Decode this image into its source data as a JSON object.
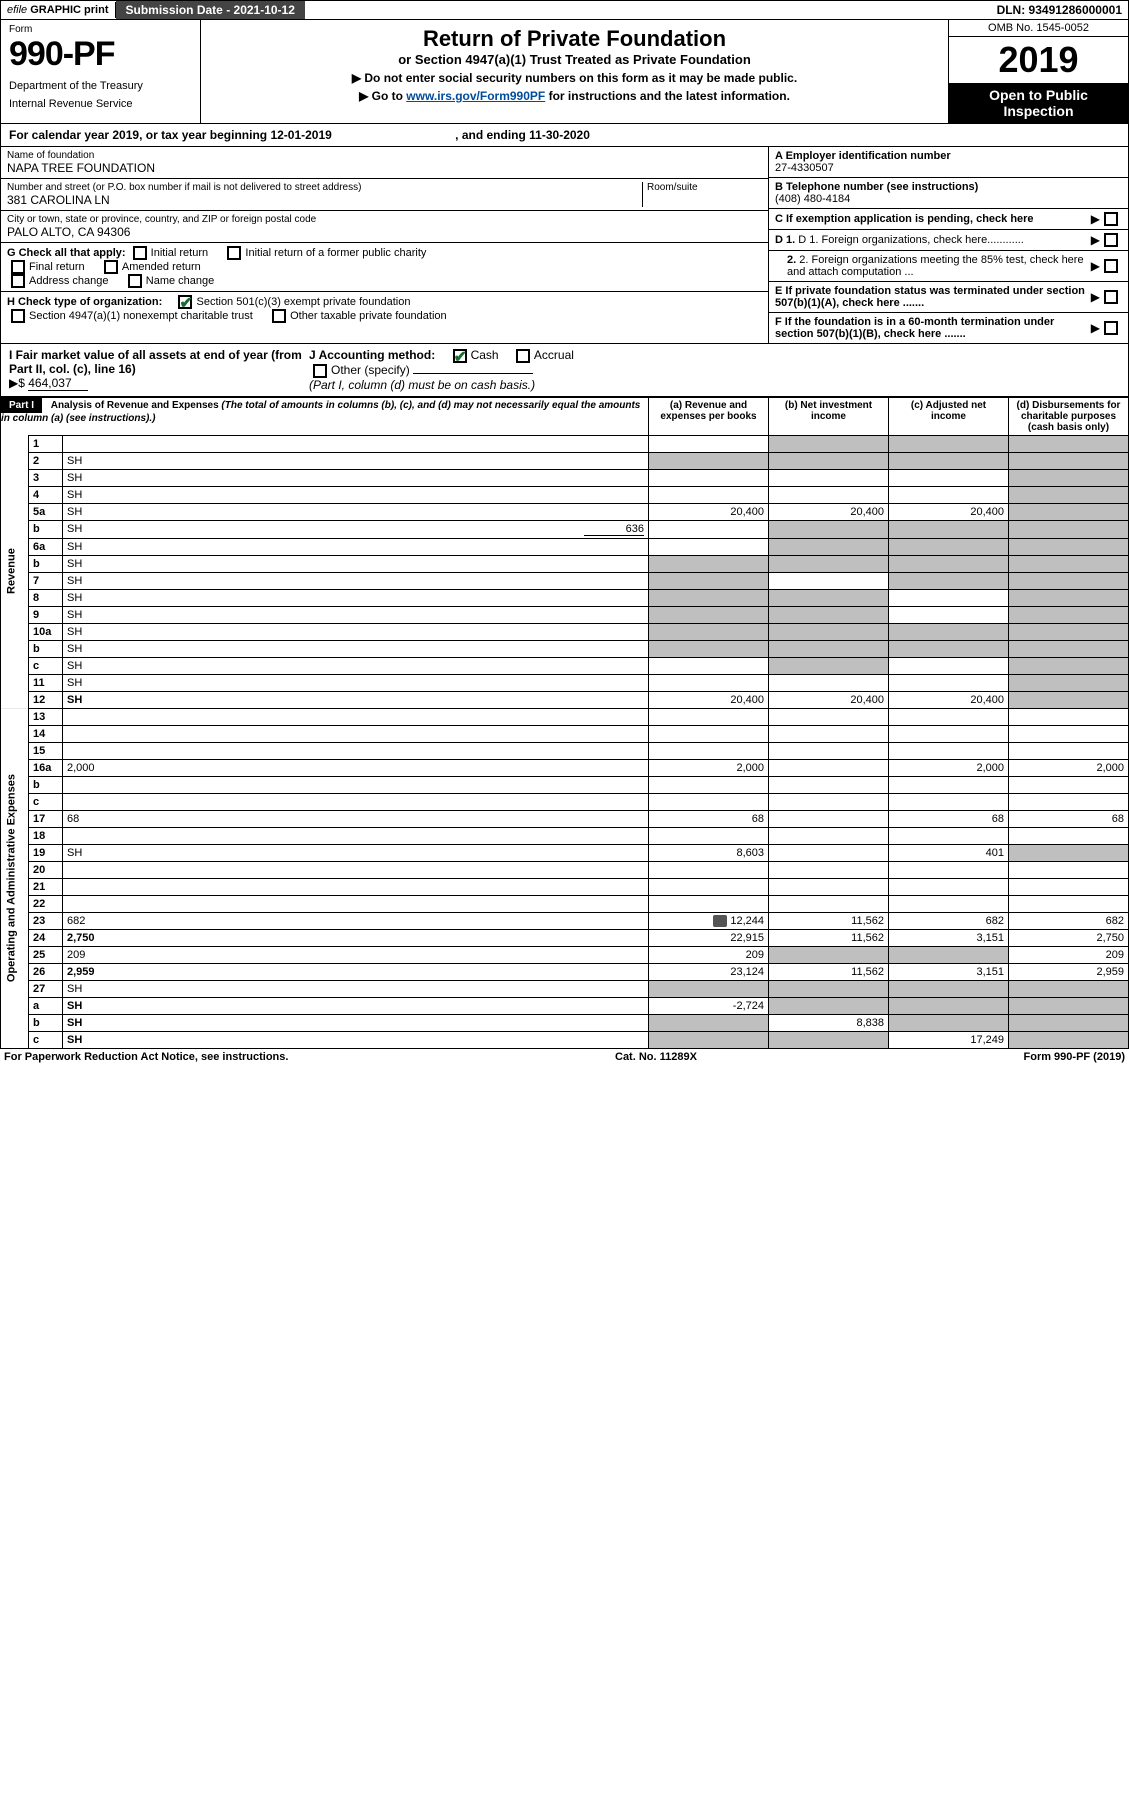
{
  "topbar": {
    "efile_prefix": "efile",
    "efile_bold": "GRAPHIC",
    "print": "print",
    "submission_label": "Submission Date - 2021-10-12",
    "dln": "DLN: 93491286000001"
  },
  "header": {
    "form_label": "Form",
    "form_no": "990-PF",
    "dept1": "Department of the Treasury",
    "dept2": "Internal Revenue Service",
    "title": "Return of Private Foundation",
    "subtitle": "or Section 4947(a)(1) Trust Treated as Private Foundation",
    "instr1": "▶ Do not enter social security numbers on this form as it may be made public.",
    "instr2_pre": "▶ Go to ",
    "instr2_link": "www.irs.gov/Form990PF",
    "instr2_post": " for instructions and the latest information.",
    "omb": "OMB No. 1545-0052",
    "year": "2019",
    "open1": "Open to Public",
    "open2": "Inspection"
  },
  "calyear": {
    "text_a": "For calendar year 2019, or tax year beginning 12-01-2019",
    "text_b": ", and ending 11-30-2020"
  },
  "id": {
    "name_lbl": "Name of foundation",
    "name_val": "NAPA TREE FOUNDATION",
    "addr_lbl": "Number and street (or P.O. box number if mail is not delivered to street address)",
    "addr_val": "381 CAROLINA LN",
    "room_lbl": "Room/suite",
    "city_lbl": "City or town, state or province, country, and ZIP or foreign postal code",
    "city_val": "PALO ALTO, CA  94306",
    "A_lbl": "A Employer identification number",
    "A_val": "27-4330507",
    "B_lbl": "B Telephone number (see instructions)",
    "B_val": "(408) 480-4184",
    "C_lbl": "C If exemption application is pending, check here",
    "D1_lbl": "D 1. Foreign organizations, check here............",
    "D2_lbl": "2. Foreign organizations meeting the 85% test, check here and attach computation ...",
    "E_lbl": "E If private foundation status was terminated under section 507(b)(1)(A), check here .......",
    "F_lbl": "F If the foundation is in a 60-month termination under section 507(b)(1)(B), check here .......",
    "G_lbl": "G Check all that apply:",
    "G_opts": [
      "Initial return",
      "Initial return of a former public charity",
      "Final return",
      "Amended return",
      "Address change",
      "Name change"
    ],
    "H_lbl": "H Check type of organization:",
    "H_opt1": "Section 501(c)(3) exempt private foundation",
    "H_opt2": "Section 4947(a)(1) nonexempt charitable trust",
    "H_opt3": "Other taxable private foundation",
    "I_lbl": "I Fair market value of all assets at end of year (from Part II, col. (c), line 16)",
    "I_val": "464,037",
    "I_arrow": "▶$",
    "J_lbl": "J Accounting method:",
    "J_opt1": "Cash",
    "J_opt2": "Accrual",
    "J_opt3": "Other (specify)",
    "J_note": "(Part I, column (d) must be on cash basis.)"
  },
  "part1": {
    "label": "Part I",
    "title": "Analysis of Revenue and Expenses",
    "note": "(The total of amounts in columns (b), (c), and (d) may not necessarily equal the amounts in column (a) (see instructions).)",
    "col_a": "(a) Revenue and expenses per books",
    "col_b": "(b) Net investment income",
    "col_c": "(c) Adjusted net income",
    "col_d": "(d) Disbursements for charitable purposes (cash basis only)",
    "side_rev": "Revenue",
    "side_exp": "Operating and Administrative Expenses",
    "rows": [
      {
        "n": "1",
        "d": "",
        "a": "",
        "b": "",
        "c": "",
        "shade_b": true,
        "shade_c": true,
        "shade_d": true
      },
      {
        "n": "2",
        "d": "SH",
        "a": "SH",
        "b": "SH",
        "c": "SH",
        "fullshade": true
      },
      {
        "n": "3",
        "d": "SH",
        "a": "",
        "b": "",
        "c": "",
        "shade_d": true
      },
      {
        "n": "4",
        "d": "SH",
        "a": "",
        "b": "",
        "c": "",
        "shade_d": true
      },
      {
        "n": "5a",
        "d": "SH",
        "a": "20,400",
        "b": "20,400",
        "c": "20,400",
        "shade_d": true
      },
      {
        "n": "b",
        "d": "SH",
        "a": "",
        "b": "SH",
        "c": "SH",
        "shade_b": true,
        "shade_c": true,
        "shade_d": true,
        "extra": "636"
      },
      {
        "n": "6a",
        "d": "SH",
        "a": "",
        "b": "SH",
        "c": "SH",
        "shade_b": true,
        "shade_c": true,
        "shade_d": true
      },
      {
        "n": "b",
        "d": "SH",
        "a": "SH",
        "b": "SH",
        "c": "SH",
        "fullshade": true
      },
      {
        "n": "7",
        "d": "SH",
        "a": "SH",
        "b": "",
        "c": "SH",
        "shade_a": true,
        "shade_c": true,
        "shade_d": true
      },
      {
        "n": "8",
        "d": "SH",
        "a": "SH",
        "b": "SH",
        "c": "",
        "shade_a": true,
        "shade_b": true,
        "shade_d": true
      },
      {
        "n": "9",
        "d": "SH",
        "a": "SH",
        "b": "SH",
        "c": "",
        "shade_a": true,
        "shade_b": true,
        "shade_d": true
      },
      {
        "n": "10a",
        "d": "SH",
        "a": "SH",
        "b": "SH",
        "c": "SH",
        "fullshade": true
      },
      {
        "n": "b",
        "d": "SH",
        "a": "SH",
        "b": "SH",
        "c": "SH",
        "fullshade": true
      },
      {
        "n": "c",
        "d": "SH",
        "a": "",
        "b": "SH",
        "c": "",
        "shade_b": true,
        "shade_d": true
      },
      {
        "n": "11",
        "d": "SH",
        "a": "",
        "b": "",
        "c": "",
        "shade_d": true
      },
      {
        "n": "12",
        "d": "SH",
        "a": "20,400",
        "b": "20,400",
        "c": "20,400",
        "bold": true,
        "shade_d": true
      },
      {
        "n": "13",
        "d": "",
        "a": "",
        "b": "",
        "c": ""
      },
      {
        "n": "14",
        "d": "",
        "a": "",
        "b": "",
        "c": ""
      },
      {
        "n": "15",
        "d": "",
        "a": "",
        "b": "",
        "c": ""
      },
      {
        "n": "16a",
        "d": "2,000",
        "a": "2,000",
        "b": "",
        "c": "2,000"
      },
      {
        "n": "b",
        "d": "",
        "a": "",
        "b": "",
        "c": ""
      },
      {
        "n": "c",
        "d": "",
        "a": "",
        "b": "",
        "c": ""
      },
      {
        "n": "17",
        "d": "68",
        "a": "68",
        "b": "",
        "c": "68"
      },
      {
        "n": "18",
        "d": "",
        "a": "",
        "b": "",
        "c": ""
      },
      {
        "n": "19",
        "d": "SH",
        "a": "8,603",
        "b": "",
        "c": "401",
        "shade_d": true
      },
      {
        "n": "20",
        "d": "",
        "a": "",
        "b": "",
        "c": ""
      },
      {
        "n": "21",
        "d": "",
        "a": "",
        "b": "",
        "c": ""
      },
      {
        "n": "22",
        "d": "",
        "a": "",
        "b": "",
        "c": ""
      },
      {
        "n": "23",
        "d": "682",
        "a": "12,244",
        "b": "11,562",
        "c": "682",
        "icon": true
      },
      {
        "n": "24",
        "d": "2,750",
        "a": "22,915",
        "b": "11,562",
        "c": "3,151",
        "bold": true
      },
      {
        "n": "25",
        "d": "209",
        "a": "209",
        "b": "SH",
        "c": "SH",
        "shade_b": true,
        "shade_c": true
      },
      {
        "n": "26",
        "d": "2,959",
        "a": "23,124",
        "b": "11,562",
        "c": "3,151",
        "bold": true
      },
      {
        "n": "27",
        "d": "SH",
        "a": "SH",
        "b": "SH",
        "c": "SH",
        "fullshade": true
      },
      {
        "n": "a",
        "d": "SH",
        "a": "-2,724",
        "b": "SH",
        "c": "SH",
        "bold": true,
        "shade_b": true,
        "shade_c": true,
        "shade_d": true
      },
      {
        "n": "b",
        "d": "SH",
        "a": "SH",
        "b": "8,838",
        "c": "SH",
        "bold": true,
        "shade_a": true,
        "shade_c": true,
        "shade_d": true
      },
      {
        "n": "c",
        "d": "SH",
        "a": "SH",
        "b": "SH",
        "c": "17,249",
        "bold": true,
        "shade_a": true,
        "shade_b": true,
        "shade_d": true
      }
    ]
  },
  "footer": {
    "left": "For Paperwork Reduction Act Notice, see instructions.",
    "mid": "Cat. No. 11289X",
    "right": "Form 990-PF (2019)"
  },
  "colors": {
    "shade": "#bfbfbf",
    "link": "#004b9b",
    "check": "#1a6b2f"
  }
}
